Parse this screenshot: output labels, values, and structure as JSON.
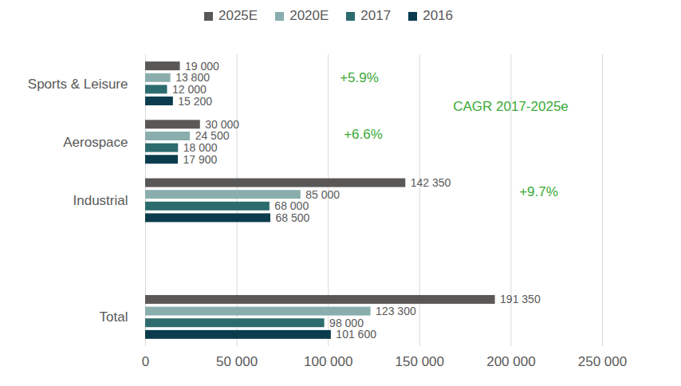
{
  "chart_data": {
    "type": "bar",
    "orientation": "horizontal",
    "categories": [
      "Sports & Leisure",
      "Aerospace",
      "Industrial",
      null,
      "Total"
    ],
    "series": [
      {
        "name": "2025E",
        "color": "#5a5856",
        "values": [
          19000,
          30000,
          142350,
          null,
          191350
        ],
        "value_labels": [
          "19 000",
          "30 000",
          "142 350",
          null,
          "191 350"
        ]
      },
      {
        "name": "2020E",
        "color": "#8aaeae",
        "values": [
          13800,
          24500,
          85000,
          null,
          123300
        ],
        "value_labels": [
          "13 800",
          "24 500",
          "85 000",
          null,
          "123 300"
        ]
      },
      {
        "name": "2017",
        "color": "#2d6c6e",
        "values": [
          12000,
          18000,
          68000,
          null,
          98000
        ],
        "value_labels": [
          "12 000",
          "18 000",
          "68 000",
          null,
          "98 000"
        ]
      },
      {
        "name": "2016",
        "color": "#0b3c4e",
        "values": [
          15200,
          17900,
          68500,
          null,
          101600
        ],
        "value_labels": [
          "15 200",
          "17 900",
          "68 500",
          null,
          "101 600"
        ]
      }
    ],
    "xlim": [
      0,
      250000
    ],
    "xticks": [
      0,
      {
        "value": 50000,
        "label": "50 000"
      },
      {
        "value": 100000,
        "label": "100 000"
      },
      {
        "value": 150000,
        "label": "150 000"
      },
      {
        "value": 200000,
        "label": "200 000"
      },
      {
        "value": 250000,
        "label": "250 000"
      }
    ],
    "grid": true,
    "data_labels": true,
    "legend": "top",
    "annotations": [
      {
        "text": "+5.9%",
        "category": "Sports & Leisure"
      },
      {
        "text": "+6.6%",
        "category": "Aerospace"
      },
      {
        "text": "+9.7%",
        "category": "Industrial"
      },
      {
        "text": "CAGR 2017-2025e"
      }
    ]
  }
}
